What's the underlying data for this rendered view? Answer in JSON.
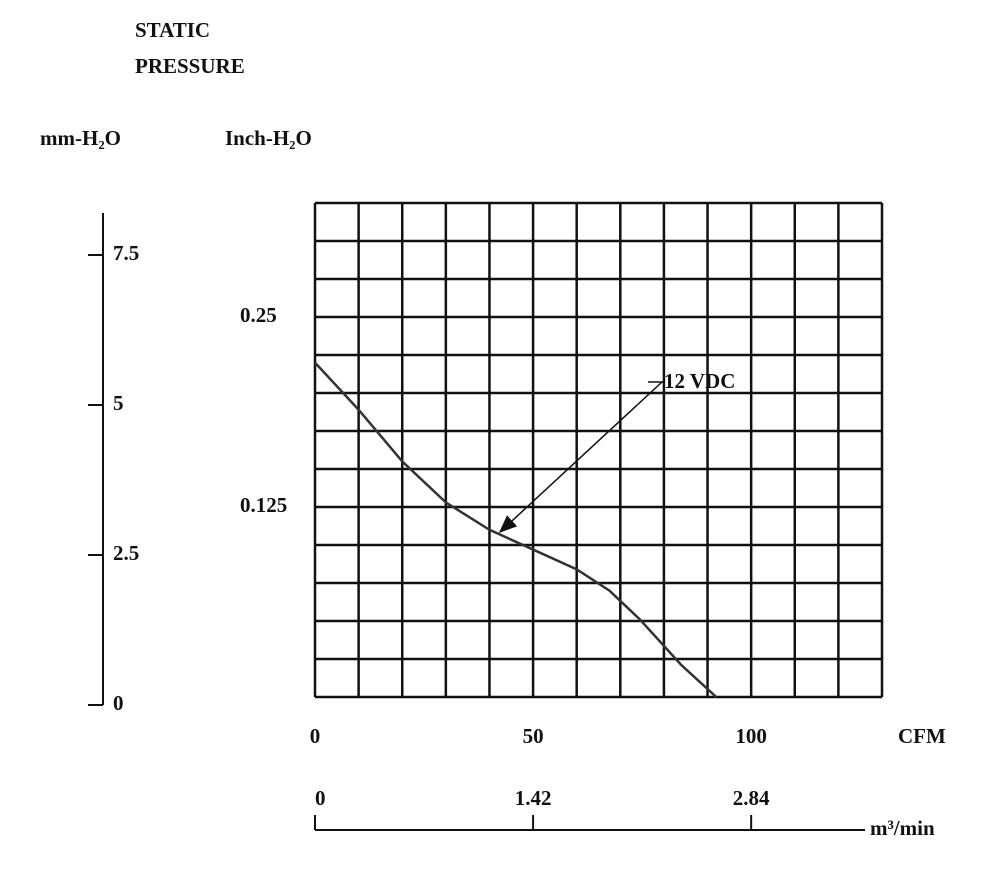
{
  "chart_data": {
    "type": "line",
    "title": [
      "STATIC",
      "PRESSURE"
    ],
    "y_label": "Inch-H₂O",
    "y2_label": "mm-H₂O",
    "x_label": "CFM",
    "x2_label": "m³/min",
    "annotation": "12 VDC",
    "x": [
      0,
      10,
      20,
      30,
      40,
      50,
      60,
      67.5,
      74.5,
      84,
      92
    ],
    "series": [
      {
        "name": "12 VDC",
        "color": "#333333",
        "values": [
          0.22,
          0.189,
          0.155,
          0.128,
          0.11,
          0.097,
          0.084,
          0.07,
          0.051,
          0.021,
          0
        ]
      }
    ],
    "xlim": [
      0,
      130
    ],
    "xticks": [
      0,
      50,
      100
    ],
    "xgrid": [
      0,
      10,
      20,
      30,
      40,
      50,
      60,
      70,
      80,
      90,
      100,
      110,
      120,
      130
    ],
    "ylim": [
      0,
      0.325
    ],
    "yticks": [
      0.125,
      0.25
    ],
    "ygrid": [
      0,
      0.025,
      0.05,
      0.075,
      0.1,
      0.125,
      0.15,
      0.175,
      0.2,
      0.225,
      0.25,
      0.275,
      0.3,
      0.325
    ],
    "y2lim": [
      0,
      8.2
    ],
    "y2ticks": [
      0,
      2.5,
      5,
      7.5
    ],
    "x2lim": [
      0,
      3.692
    ],
    "x2ticks": [
      0,
      1.42,
      2.84
    ],
    "grid": true
  }
}
